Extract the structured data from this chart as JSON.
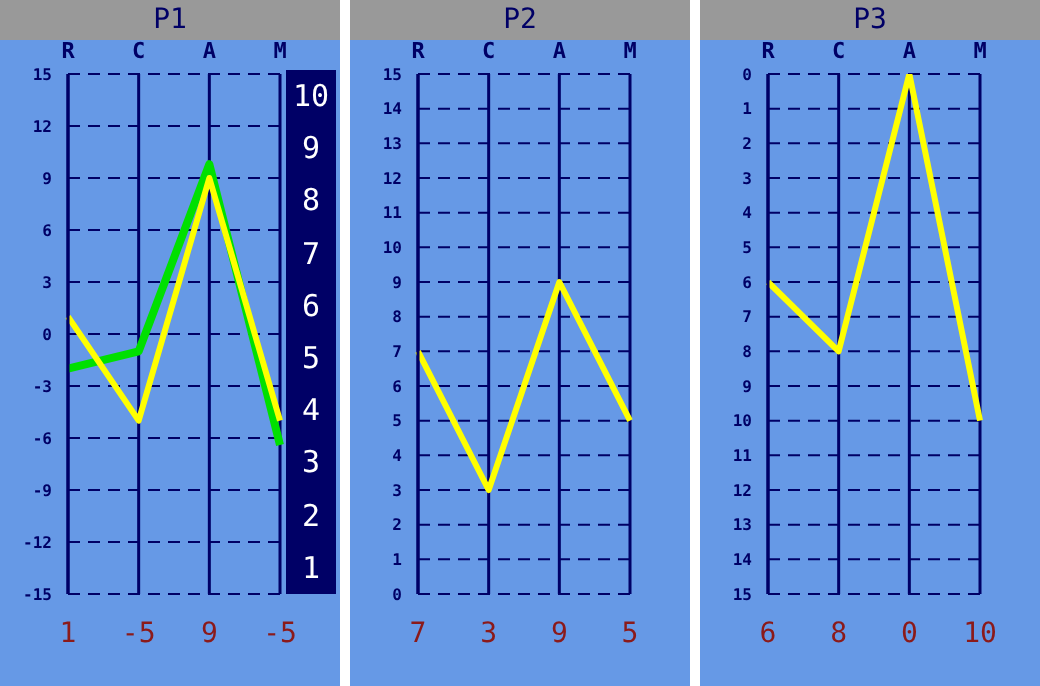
{
  "chart_data": [
    {
      "type": "line",
      "title": "P1",
      "categories": [
        "R",
        "C",
        "A",
        "M"
      ],
      "ylim": [
        -15,
        15
      ],
      "yticks": [
        -15,
        -12,
        -9,
        -6,
        -3,
        0,
        3,
        6,
        9,
        12,
        15
      ],
      "grid": true,
      "marker": "none",
      "line_style": "solid",
      "series": [
        {
          "color": "#00e000",
          "values": [
            -2,
            -1,
            9.8,
            -6.4
          ]
        },
        {
          "color": "#ffff00",
          "values": [
            1,
            -5,
            9,
            -5
          ],
          "value_labels": [
            "1",
            "-5",
            "9",
            "-5"
          ]
        }
      ],
      "annotations": [
        "10",
        "9",
        "8",
        "7",
        "6",
        "5",
        "4",
        "3",
        "2",
        "1"
      ]
    },
    {
      "type": "line",
      "title": "P2",
      "categories": [
        "R",
        "C",
        "A",
        "M"
      ],
      "ylim": [
        0,
        15
      ],
      "yticks": [
        0,
        1,
        2,
        3,
        4,
        5,
        6,
        7,
        8,
        9,
        10,
        11,
        12,
        13,
        14,
        15
      ],
      "grid": true,
      "marker": "none",
      "line_style": "solid",
      "series": [
        {
          "color": "#ffff00",
          "values": [
            7,
            3,
            9,
            5
          ],
          "value_labels": [
            "7",
            "3",
            "9",
            "5"
          ]
        }
      ]
    },
    {
      "type": "line",
      "title": "P3",
      "categories": [
        "R",
        "C",
        "A",
        "M"
      ],
      "ylim": [
        15,
        0
      ],
      "yticks": [
        0,
        1,
        2,
        3,
        4,
        5,
        6,
        7,
        8,
        9,
        10,
        11,
        12,
        13,
        14,
        15
      ],
      "grid": true,
      "marker": "none",
      "line_style": "solid",
      "series": [
        {
          "color": "#ffff00",
          "values": [
            6,
            8,
            0,
            10
          ],
          "value_labels": [
            "6",
            "8",
            "0",
            "10"
          ]
        }
      ]
    }
  ]
}
